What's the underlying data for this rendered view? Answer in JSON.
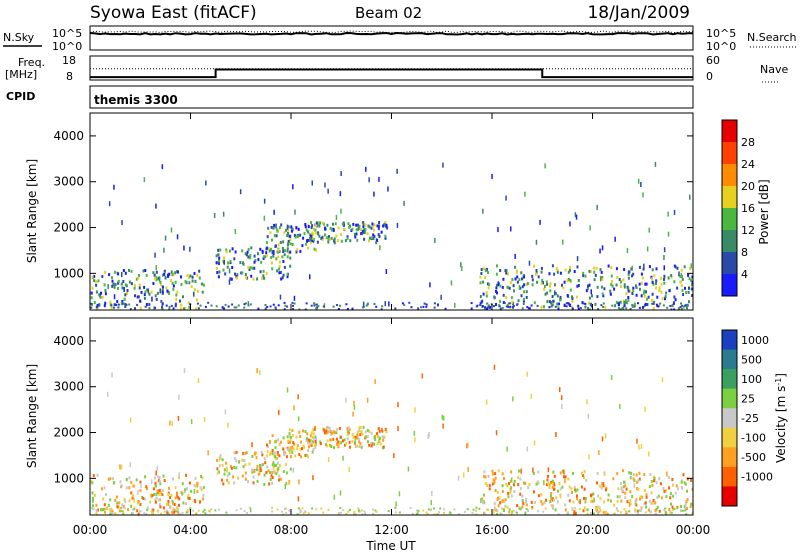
{
  "header": {
    "station": "Syowa East (fitACF)",
    "beam": "Beam 02",
    "date": "18/Jan/2009"
  },
  "panels": {
    "nsky": {
      "left_label": "N.Sky",
      "left_ticks": [
        "10^5",
        "10^0"
      ],
      "right_ticks": [
        "10^5",
        "10^0"
      ],
      "right_label": "N.Search"
    },
    "freq": {
      "left_label_top": "Freq.",
      "left_label_bottom": "[MHz]",
      "left_ticks": [
        "18",
        "8"
      ],
      "right_ticks": [
        "60",
        "0"
      ],
      "right_label": "Nave",
      "freq_segments": [
        {
          "start_h": 0,
          "end_h": 5,
          "mhz": 9.2
        },
        {
          "start_h": 5,
          "end_h": 18,
          "mhz": 12.4
        },
        {
          "start_h": 18,
          "end_h": 24,
          "mhz": 9.2
        }
      ],
      "nave_level": 28,
      "ylim_mhz": [
        8,
        18
      ],
      "ylim_nave": [
        0,
        60
      ]
    },
    "cpid": {
      "label": "CPID",
      "value": "themis 3300"
    }
  },
  "chart_data": [
    {
      "type": "heatmap",
      "title": "",
      "ylabel": "Slant Range [km]",
      "xlabel": "Time UT",
      "xlim_hours": [
        0,
        24
      ],
      "ylim_km": [
        200,
        4500
      ],
      "yticks": [
        "1000",
        "2000",
        "3000",
        "4000"
      ],
      "xticks": [
        "00:00",
        "04:00",
        "08:00",
        "12:00",
        "16:00",
        "20:00",
        "00:00"
      ],
      "colorbar": {
        "label": "Power [dB]",
        "ticks": [
          "4",
          "8",
          "12",
          "16",
          "20",
          "24",
          "28"
        ],
        "colors": [
          "#1a1aff",
          "#2a4aa8",
          "#3a8a6a",
          "#4ab840",
          "#e6d020",
          "#ff8c00",
          "#ff4000",
          "#e60000"
        ]
      },
      "echo_regions": [
        {
          "t0": 0.0,
          "t1": 4.5,
          "r0": 250,
          "r1": 1100
        },
        {
          "t0": 5.0,
          "t1": 8.0,
          "r0": 900,
          "r1": 1600
        },
        {
          "t0": 7.0,
          "t1": 9.0,
          "r0": 1500,
          "r1": 2100
        },
        {
          "t0": 8.5,
          "t1": 11.8,
          "r0": 1700,
          "r1": 2150
        },
        {
          "t0": 15.5,
          "t1": 24.0,
          "r0": 250,
          "r1": 1200
        }
      ]
    },
    {
      "type": "heatmap",
      "title": "",
      "ylabel": "Slant Range [km]",
      "xlabel": "Time UT",
      "xlim_hours": [
        0,
        24
      ],
      "ylim_km": [
        200,
        4500
      ],
      "yticks": [
        "1000",
        "2000",
        "3000",
        "4000"
      ],
      "xticks": [
        "00:00",
        "04:00",
        "08:00",
        "12:00",
        "16:00",
        "20:00",
        "00:00"
      ],
      "colorbar": {
        "label": "Velocity [m s^-1]",
        "ticks": [
          "1000",
          "500",
          "100",
          "25",
          "-25",
          "-100",
          "-500",
          "-1000"
        ],
        "colors": [
          "#1a40c0",
          "#2a7a90",
          "#3aa060",
          "#7ad040",
          "#c8c8c8",
          "#f0d040",
          "#ffa020",
          "#ff6000",
          "#e60000"
        ]
      },
      "echo_regions": [
        {
          "t0": 0.0,
          "t1": 4.5,
          "r0": 250,
          "r1": 1100
        },
        {
          "t0": 5.0,
          "t1": 8.0,
          "r0": 900,
          "r1": 1600
        },
        {
          "t0": 7.0,
          "t1": 9.0,
          "r0": 1500,
          "r1": 2100
        },
        {
          "t0": 8.5,
          "t1": 11.8,
          "r0": 1700,
          "r1": 2150
        },
        {
          "t0": 15.5,
          "t1": 24.0,
          "r0": 250,
          "r1": 1200
        }
      ]
    }
  ]
}
